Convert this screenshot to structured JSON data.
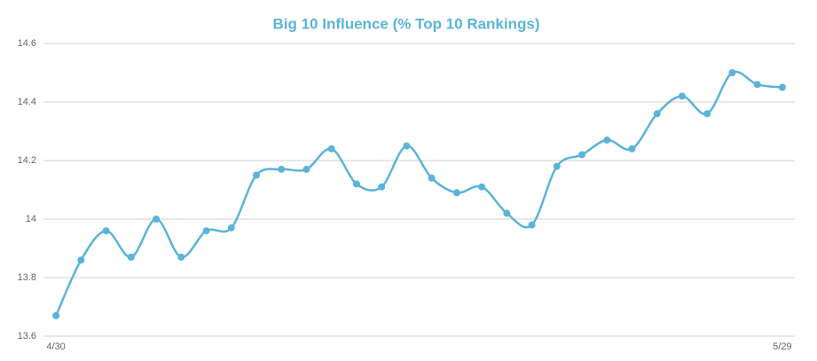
{
  "chart_data": {
    "type": "line",
    "title": "Big 10 Influence (% Top 10 Rankings)",
    "categories": [
      "4/30",
      null,
      null,
      null,
      null,
      null,
      null,
      null,
      null,
      null,
      null,
      null,
      null,
      null,
      null,
      null,
      null,
      null,
      null,
      null,
      null,
      null,
      null,
      null,
      null,
      null,
      null,
      null,
      null,
      "5/29"
    ],
    "values": [
      13.67,
      13.86,
      13.96,
      13.87,
      14.0,
      13.87,
      13.96,
      13.97,
      14.15,
      14.17,
      14.17,
      14.24,
      14.12,
      14.11,
      14.25,
      14.14,
      14.09,
      14.11,
      14.02,
      13.98,
      14.18,
      14.22,
      14.27,
      14.24,
      14.36,
      14.42,
      14.36,
      14.5,
      14.46,
      14.45
    ],
    "color": "#5ab4d8",
    "ylim": [
      13.6,
      14.6
    ],
    "yticks": [
      13.6,
      13.8,
      14,
      14.2,
      14.4,
      14.6
    ],
    "grid": true
  }
}
